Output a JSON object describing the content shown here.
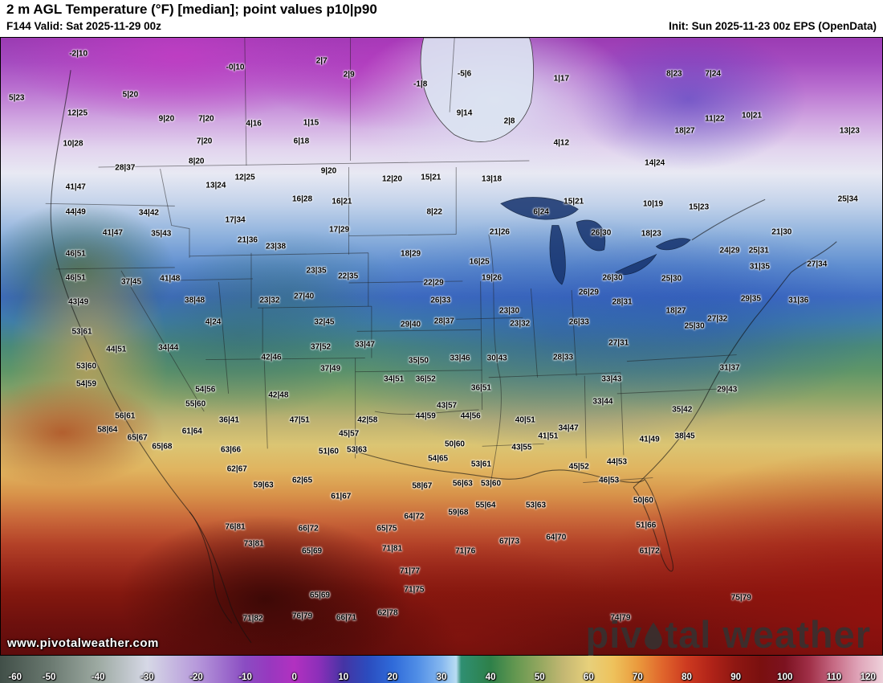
{
  "header": {
    "title": "2 m AGL Temperature (°F) [median]; point values p10|p90",
    "valid": "F144 Valid: Sat 2025-11-29 00z",
    "init": "Init: Sun 2025-11-23 00z EPS (OpenData)"
  },
  "watermark": "www.pivotalweather.com",
  "logo": {
    "part1": "piv",
    "part2": "tal weather"
  },
  "colorbar": {
    "min": -60,
    "max": 120,
    "ticks": [
      -60,
      -50,
      -40,
      -30,
      -20,
      -10,
      0,
      10,
      20,
      30,
      40,
      50,
      60,
      70,
      80,
      90,
      100,
      110,
      120
    ],
    "stops": [
      {
        "v": -60,
        "c": "#414f48"
      },
      {
        "v": -50,
        "c": "#69786f"
      },
      {
        "v": -40,
        "c": "#9daaa2"
      },
      {
        "v": -30,
        "c": "#d6d8e6"
      },
      {
        "v": -20,
        "c": "#b79adb"
      },
      {
        "v": -10,
        "c": "#8a4cc2"
      },
      {
        "v": -5,
        "c": "#9838bf"
      },
      {
        "v": 0,
        "c": "#b231c0"
      },
      {
        "v": 5,
        "c": "#8c2fb9"
      },
      {
        "v": 10,
        "c": "#4534a4"
      },
      {
        "v": 15,
        "c": "#2b4cbe"
      },
      {
        "v": 20,
        "c": "#2f6ad9"
      },
      {
        "v": 25,
        "c": "#4f8de6"
      },
      {
        "v": 30,
        "c": "#85b7ef"
      },
      {
        "v": 33,
        "c": "#b9ddf3"
      },
      {
        "v": 34,
        "c": "#2f8f72"
      },
      {
        "v": 40,
        "c": "#2e8049"
      },
      {
        "v": 45,
        "c": "#639750"
      },
      {
        "v": 50,
        "c": "#93a75f"
      },
      {
        "v": 55,
        "c": "#c5b873"
      },
      {
        "v": 60,
        "c": "#e7d07b"
      },
      {
        "v": 65,
        "c": "#eec25c"
      },
      {
        "v": 70,
        "c": "#ea9a3d"
      },
      {
        "v": 75,
        "c": "#e0662c"
      },
      {
        "v": 80,
        "c": "#cd3a20"
      },
      {
        "v": 85,
        "c": "#b02318"
      },
      {
        "v": 90,
        "c": "#8e1712"
      },
      {
        "v": 95,
        "c": "#7a100f"
      },
      {
        "v": 100,
        "c": "#7c1220"
      },
      {
        "v": 105,
        "c": "#a03048"
      },
      {
        "v": 110,
        "c": "#c66a84"
      },
      {
        "v": 115,
        "c": "#dfa4b8"
      },
      {
        "v": 120,
        "c": "#eed0da"
      }
    ]
  },
  "map_points": [
    {
      "t": "-2|10",
      "x": 8.8,
      "y": 2.6
    },
    {
      "t": "-0|10",
      "x": 26.6,
      "y": 4.8
    },
    {
      "t": "2|7",
      "x": 36.4,
      "y": 3.8
    },
    {
      "t": "2|9",
      "x": 39.5,
      "y": 6.0
    },
    {
      "t": "-1|8",
      "x": 47.6,
      "y": 7.5
    },
    {
      "t": "-5|6",
      "x": 52.6,
      "y": 5.9
    },
    {
      "t": "1|17",
      "x": 63.6,
      "y": 6.6
    },
    {
      "t": "8|23",
      "x": 76.4,
      "y": 5.9
    },
    {
      "t": "7|24",
      "x": 80.8,
      "y": 5.9
    },
    {
      "t": "5|23",
      "x": 1.8,
      "y": 9.8
    },
    {
      "t": "5|20",
      "x": 14.7,
      "y": 9.2
    },
    {
      "t": "12|25",
      "x": 8.7,
      "y": 12.2
    },
    {
      "t": "9|20",
      "x": 18.8,
      "y": 13.2
    },
    {
      "t": "7|20",
      "x": 23.3,
      "y": 13.2
    },
    {
      "t": "4|16",
      "x": 28.7,
      "y": 13.9
    },
    {
      "t": "1|15",
      "x": 35.2,
      "y": 13.8
    },
    {
      "t": "9|14",
      "x": 52.6,
      "y": 12.3
    },
    {
      "t": "2|8",
      "x": 57.7,
      "y": 13.5
    },
    {
      "t": "11|22",
      "x": 81.0,
      "y": 13.1
    },
    {
      "t": "10|21",
      "x": 85.2,
      "y": 12.6
    },
    {
      "t": "13|23",
      "x": 96.3,
      "y": 15.1
    },
    {
      "t": "10|28",
      "x": 8.2,
      "y": 17.2
    },
    {
      "t": "7|20",
      "x": 23.1,
      "y": 16.8
    },
    {
      "t": "6|18",
      "x": 34.1,
      "y": 16.8
    },
    {
      "t": "4|12",
      "x": 63.6,
      "y": 17.0
    },
    {
      "t": "18|27",
      "x": 77.6,
      "y": 15.1
    },
    {
      "t": "8|20",
      "x": 22.2,
      "y": 20.1
    },
    {
      "t": "9|20",
      "x": 37.2,
      "y": 21.6
    },
    {
      "t": "14|24",
      "x": 74.2,
      "y": 20.3
    },
    {
      "t": "28|37",
      "x": 14.1,
      "y": 21.1
    },
    {
      "t": "13|24",
      "x": 24.4,
      "y": 24.0
    },
    {
      "t": "12|25",
      "x": 27.7,
      "y": 22.7
    },
    {
      "t": "12|20",
      "x": 44.4,
      "y": 22.9
    },
    {
      "t": "15|21",
      "x": 48.8,
      "y": 22.7
    },
    {
      "t": "13|18",
      "x": 55.7,
      "y": 22.9
    },
    {
      "t": "41|47",
      "x": 8.5,
      "y": 24.2
    },
    {
      "t": "16|28",
      "x": 34.2,
      "y": 26.2
    },
    {
      "t": "16|21",
      "x": 38.7,
      "y": 26.6
    },
    {
      "t": "15|21",
      "x": 65.0,
      "y": 26.5
    },
    {
      "t": "10|19",
      "x": 74.0,
      "y": 26.9
    },
    {
      "t": "15|23",
      "x": 79.2,
      "y": 27.5
    },
    {
      "t": "25|34",
      "x": 96.1,
      "y": 26.2
    },
    {
      "t": "44|49",
      "x": 8.5,
      "y": 28.3
    },
    {
      "t": "34|42",
      "x": 16.8,
      "y": 28.4
    },
    {
      "t": "17|34",
      "x": 26.6,
      "y": 29.5
    },
    {
      "t": "8|22",
      "x": 49.2,
      "y": 28.2
    },
    {
      "t": "6|24",
      "x": 61.3,
      "y": 28.2
    },
    {
      "t": "41|47",
      "x": 12.7,
      "y": 31.7
    },
    {
      "t": "35|43",
      "x": 18.2,
      "y": 31.8
    },
    {
      "t": "17|29",
      "x": 38.4,
      "y": 31.1
    },
    {
      "t": "21|26",
      "x": 56.6,
      "y": 31.5
    },
    {
      "t": "26|30",
      "x": 68.1,
      "y": 31.7
    },
    {
      "t": "18|23",
      "x": 73.8,
      "y": 31.8
    },
    {
      "t": "21|30",
      "x": 88.6,
      "y": 31.5
    },
    {
      "t": "46|51",
      "x": 8.5,
      "y": 35.0
    },
    {
      "t": "21|36",
      "x": 28.0,
      "y": 32.8
    },
    {
      "t": "23|38",
      "x": 31.2,
      "y": 33.8
    },
    {
      "t": "18|29",
      "x": 46.5,
      "y": 35.0
    },
    {
      "t": "16|25",
      "x": 54.3,
      "y": 36.3
    },
    {
      "t": "24|29",
      "x": 82.7,
      "y": 34.5
    },
    {
      "t": "25|31",
      "x": 86.0,
      "y": 34.5
    },
    {
      "t": "27|34",
      "x": 92.6,
      "y": 36.7
    },
    {
      "t": "46|51",
      "x": 8.5,
      "y": 38.9
    },
    {
      "t": "37|45",
      "x": 14.8,
      "y": 39.6
    },
    {
      "t": "41|48",
      "x": 19.2,
      "y": 39.1
    },
    {
      "t": "23|35",
      "x": 35.8,
      "y": 37.7
    },
    {
      "t": "22|35",
      "x": 39.4,
      "y": 38.7
    },
    {
      "t": "22|29",
      "x": 49.1,
      "y": 39.7
    },
    {
      "t": "19|26",
      "x": 55.7,
      "y": 38.9
    },
    {
      "t": "26|30",
      "x": 69.4,
      "y": 38.9
    },
    {
      "t": "25|30",
      "x": 76.1,
      "y": 39.1
    },
    {
      "t": "31|35",
      "x": 86.1,
      "y": 37.1
    },
    {
      "t": "43|49",
      "x": 8.8,
      "y": 42.9
    },
    {
      "t": "38|48",
      "x": 22.0,
      "y": 42.6
    },
    {
      "t": "23|32",
      "x": 30.5,
      "y": 42.6
    },
    {
      "t": "27|40",
      "x": 34.4,
      "y": 41.9
    },
    {
      "t": "26|33",
      "x": 49.9,
      "y": 42.6
    },
    {
      "t": "23|30",
      "x": 57.7,
      "y": 44.3
    },
    {
      "t": "26|29",
      "x": 66.7,
      "y": 41.3
    },
    {
      "t": "28|31",
      "x": 70.5,
      "y": 42.9
    },
    {
      "t": "18|27",
      "x": 76.6,
      "y": 44.3
    },
    {
      "t": "29|35",
      "x": 85.1,
      "y": 42.3
    },
    {
      "t": "31|36",
      "x": 90.5,
      "y": 42.6
    },
    {
      "t": "53|61",
      "x": 9.2,
      "y": 47.6
    },
    {
      "t": "4|24",
      "x": 24.1,
      "y": 46.1
    },
    {
      "t": "32|45",
      "x": 36.7,
      "y": 46.1
    },
    {
      "t": "29|40",
      "x": 46.5,
      "y": 46.5
    },
    {
      "t": "28|37",
      "x": 50.3,
      "y": 45.9
    },
    {
      "t": "23|32",
      "x": 58.9,
      "y": 46.3
    },
    {
      "t": "26|33",
      "x": 65.6,
      "y": 46.1
    },
    {
      "t": "25|30",
      "x": 78.7,
      "y": 46.8
    },
    {
      "t": "27|32",
      "x": 81.3,
      "y": 45.6
    },
    {
      "t": "44|51",
      "x": 13.1,
      "y": 50.5
    },
    {
      "t": "34|44",
      "x": 19.0,
      "y": 50.2
    },
    {
      "t": "37|52",
      "x": 36.3,
      "y": 50.1
    },
    {
      "t": "33|47",
      "x": 41.3,
      "y": 49.8
    },
    {
      "t": "27|31",
      "x": 70.1,
      "y": 49.5
    },
    {
      "t": "31|37",
      "x": 82.7,
      "y": 53.5
    },
    {
      "t": "53|60",
      "x": 9.7,
      "y": 53.3
    },
    {
      "t": "42|46",
      "x": 30.7,
      "y": 51.8
    },
    {
      "t": "37|49",
      "x": 37.4,
      "y": 53.7
    },
    {
      "t": "35|50",
      "x": 47.4,
      "y": 52.4
    },
    {
      "t": "33|46",
      "x": 52.1,
      "y": 52.0
    },
    {
      "t": "30|43",
      "x": 56.3,
      "y": 52.0
    },
    {
      "t": "28|33",
      "x": 63.8,
      "y": 51.8
    },
    {
      "t": "54|59",
      "x": 9.7,
      "y": 56.1
    },
    {
      "t": "54|56",
      "x": 23.2,
      "y": 57.0
    },
    {
      "t": "42|48",
      "x": 31.5,
      "y": 57.9
    },
    {
      "t": "34|51",
      "x": 44.6,
      "y": 55.4
    },
    {
      "t": "36|52",
      "x": 48.2,
      "y": 55.4
    },
    {
      "t": "36|51",
      "x": 54.5,
      "y": 56.8
    },
    {
      "t": "33|43",
      "x": 69.3,
      "y": 55.4
    },
    {
      "t": "29|43",
      "x": 82.4,
      "y": 57.0
    },
    {
      "t": "33|44",
      "x": 68.3,
      "y": 59.0
    },
    {
      "t": "35|42",
      "x": 77.3,
      "y": 60.3
    },
    {
      "t": "56|61",
      "x": 14.1,
      "y": 61.3
    },
    {
      "t": "55|60",
      "x": 22.1,
      "y": 59.4
    },
    {
      "t": "36|41",
      "x": 25.9,
      "y": 62.0
    },
    {
      "t": "47|51",
      "x": 33.9,
      "y": 62.0
    },
    {
      "t": "42|58",
      "x": 41.6,
      "y": 62.0
    },
    {
      "t": "44|59",
      "x": 48.2,
      "y": 61.3
    },
    {
      "t": "43|57",
      "x": 50.6,
      "y": 59.6
    },
    {
      "t": "44|56",
      "x": 53.3,
      "y": 61.3
    },
    {
      "t": "40|51",
      "x": 59.5,
      "y": 62.0
    },
    {
      "t": "34|47",
      "x": 64.4,
      "y": 63.3
    },
    {
      "t": "41|49",
      "x": 73.6,
      "y": 65.1
    },
    {
      "t": "38|45",
      "x": 77.6,
      "y": 64.6
    },
    {
      "t": "58|64",
      "x": 12.1,
      "y": 63.6
    },
    {
      "t": "61|64",
      "x": 21.7,
      "y": 63.8
    },
    {
      "t": "65|67",
      "x": 15.5,
      "y": 64.9
    },
    {
      "t": "65|68",
      "x": 18.3,
      "y": 66.3
    },
    {
      "t": "63|66",
      "x": 26.1,
      "y": 66.8
    },
    {
      "t": "45|57",
      "x": 39.5,
      "y": 64.2
    },
    {
      "t": "51|60",
      "x": 37.2,
      "y": 67.1
    },
    {
      "t": "53|63",
      "x": 40.4,
      "y": 66.8
    },
    {
      "t": "41|51",
      "x": 62.1,
      "y": 64.6
    },
    {
      "t": "45|52",
      "x": 65.6,
      "y": 69.5
    },
    {
      "t": "44|53",
      "x": 69.9,
      "y": 68.8
    },
    {
      "t": "43|55",
      "x": 59.1,
      "y": 66.4
    },
    {
      "t": "50|60",
      "x": 51.5,
      "y": 65.9
    },
    {
      "t": "54|65",
      "x": 49.6,
      "y": 68.2
    },
    {
      "t": "53|61",
      "x": 54.5,
      "y": 69.1
    },
    {
      "t": "46|53",
      "x": 69.0,
      "y": 71.7
    },
    {
      "t": "62|67",
      "x": 26.8,
      "y": 69.9
    },
    {
      "t": "59|63",
      "x": 29.8,
      "y": 72.5
    },
    {
      "t": "62|65",
      "x": 34.2,
      "y": 71.8
    },
    {
      "t": "61|67",
      "x": 38.6,
      "y": 74.3
    },
    {
      "t": "58|67",
      "x": 47.8,
      "y": 72.7
    },
    {
      "t": "56|63",
      "x": 52.4,
      "y": 72.3
    },
    {
      "t": "53|60",
      "x": 55.6,
      "y": 72.3
    },
    {
      "t": "55|64",
      "x": 55.0,
      "y": 75.8
    },
    {
      "t": "53|63",
      "x": 60.7,
      "y": 75.8
    },
    {
      "t": "50|60",
      "x": 72.9,
      "y": 75.0
    },
    {
      "t": "51|66",
      "x": 73.2,
      "y": 79.0
    },
    {
      "t": "76|81",
      "x": 26.6,
      "y": 79.3
    },
    {
      "t": "73|81",
      "x": 28.7,
      "y": 82.0
    },
    {
      "t": "66|72",
      "x": 34.9,
      "y": 79.6
    },
    {
      "t": "65|75",
      "x": 43.8,
      "y": 79.6
    },
    {
      "t": "64|72",
      "x": 46.9,
      "y": 77.6
    },
    {
      "t": "59|68",
      "x": 51.9,
      "y": 76.9
    },
    {
      "t": "71|76",
      "x": 52.7,
      "y": 83.2
    },
    {
      "t": "67|73",
      "x": 57.7,
      "y": 81.7
    },
    {
      "t": "64|70",
      "x": 63.0,
      "y": 81.0
    },
    {
      "t": "65|69",
      "x": 35.3,
      "y": 83.2
    },
    {
      "t": "71|81",
      "x": 44.4,
      "y": 82.8
    },
    {
      "t": "61|72",
      "x": 73.6,
      "y": 83.2
    },
    {
      "t": "71|77",
      "x": 46.4,
      "y": 86.5
    },
    {
      "t": "71|75",
      "x": 46.9,
      "y": 89.5
    },
    {
      "t": "65|69",
      "x": 36.2,
      "y": 90.4
    },
    {
      "t": "76|79",
      "x": 34.2,
      "y": 93.7
    },
    {
      "t": "66|71",
      "x": 39.2,
      "y": 94.0
    },
    {
      "t": "71|82",
      "x": 28.6,
      "y": 94.1
    },
    {
      "t": "62|78",
      "x": 43.9,
      "y": 93.2
    },
    {
      "t": "74|79",
      "x": 70.3,
      "y": 94.0
    },
    {
      "t": "75|79",
      "x": 84.0,
      "y": 90.8
    }
  ]
}
